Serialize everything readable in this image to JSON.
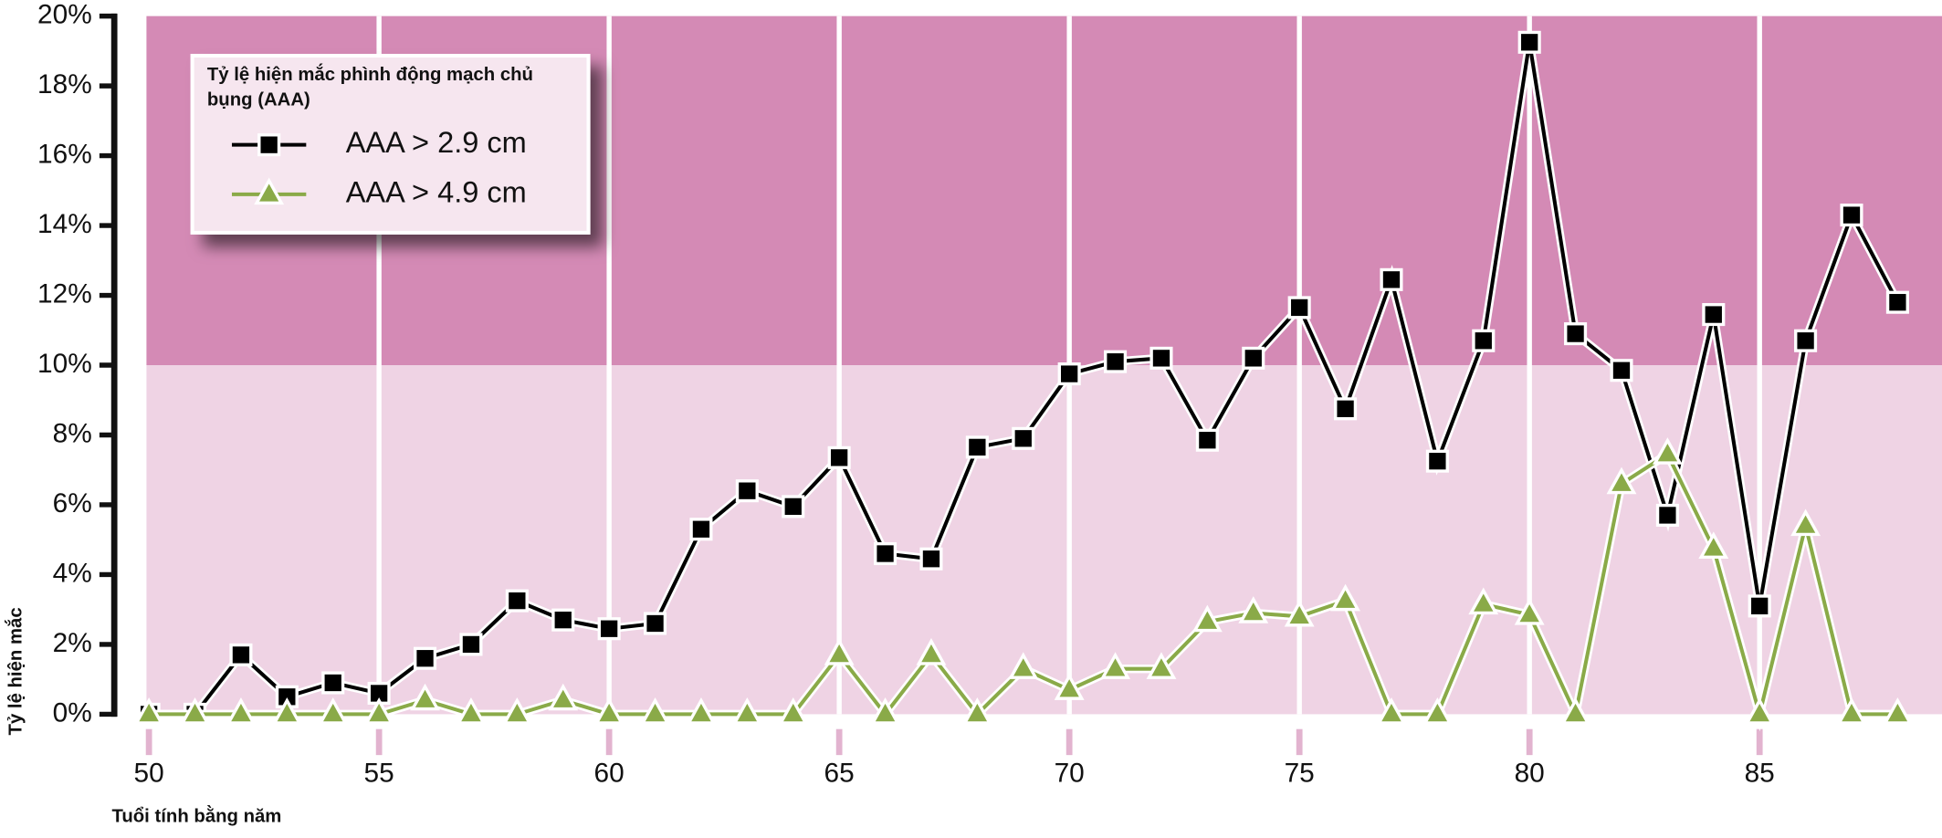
{
  "chart_data": {
    "type": "line",
    "x_label": "Tuổi tính bằng năm",
    "y_label": "Tỷ lệ hiện mắc",
    "legend_title": "Tỷ lệ hiện mắc phình động mạch chủ bụng (AAA)",
    "legend_position": "upper left",
    "x": [
      50,
      51,
      52,
      53,
      54,
      55,
      56,
      57,
      58,
      59,
      60,
      61,
      62,
      63,
      64,
      65,
      66,
      67,
      68,
      69,
      70,
      71,
      72,
      73,
      74,
      75,
      76,
      77,
      78,
      79,
      80,
      81,
      82,
      83,
      84,
      85,
      86,
      87,
      88
    ],
    "series": [
      {
        "name": "AAA > 2.9 cm",
        "color": "#000000",
        "marker": "square",
        "values": [
          0,
          0,
          1.7,
          0.5,
          0.9,
          0.6,
          1.6,
          2.0,
          3.25,
          2.7,
          2.45,
          2.6,
          5.3,
          6.4,
          5.95,
          7.35,
          4.6,
          4.45,
          7.65,
          7.9,
          9.75,
          10.1,
          10.2,
          7.85,
          10.2,
          11.65,
          8.75,
          12.45,
          7.25,
          10.7,
          19.25,
          10.9,
          9.85,
          5.7,
          11.45,
          3.1,
          10.7,
          14.3,
          11.8
        ]
      },
      {
        "name": "AAA > 4.9 cm",
        "color": "#8aaa48",
        "marker": "triangle",
        "values": [
          0,
          0,
          0,
          0,
          0,
          0,
          0.4,
          0,
          0,
          0.4,
          0,
          0,
          0,
          0,
          0,
          1.7,
          0,
          1.7,
          0,
          1.3,
          0.7,
          1.3,
          1.3,
          2.65,
          2.9,
          2.8,
          3.25,
          0,
          0,
          3.15,
          2.85,
          0,
          6.6,
          7.45,
          4.75,
          0,
          5.4,
          0,
          0
        ]
      }
    ],
    "xlim": [
      50,
      89
    ],
    "ylim": [
      0,
      20
    ],
    "xticks": [
      50,
      55,
      60,
      65,
      70,
      75,
      80,
      85
    ],
    "yticks": [
      {
        "value": 0,
        "label": "0%"
      },
      {
        "value": 2,
        "label": "2%"
      },
      {
        "value": 4,
        "label": "4%"
      },
      {
        "value": 6,
        "label": "6%"
      },
      {
        "value": 8,
        "label": "8%"
      },
      {
        "value": 10,
        "label": "10%"
      },
      {
        "value": 12,
        "label": "12%"
      },
      {
        "value": 14,
        "label": "14%"
      },
      {
        "value": 16,
        "label": "16%"
      },
      {
        "value": 18,
        "label": "18%"
      },
      {
        "value": 20,
        "label": "20%"
      }
    ],
    "bands": [
      {
        "from": 0,
        "to": 10,
        "color": "#efd3e4"
      },
      {
        "from": 10,
        "to": 20,
        "color": "#d48ab5"
      }
    ],
    "grid": true
  }
}
